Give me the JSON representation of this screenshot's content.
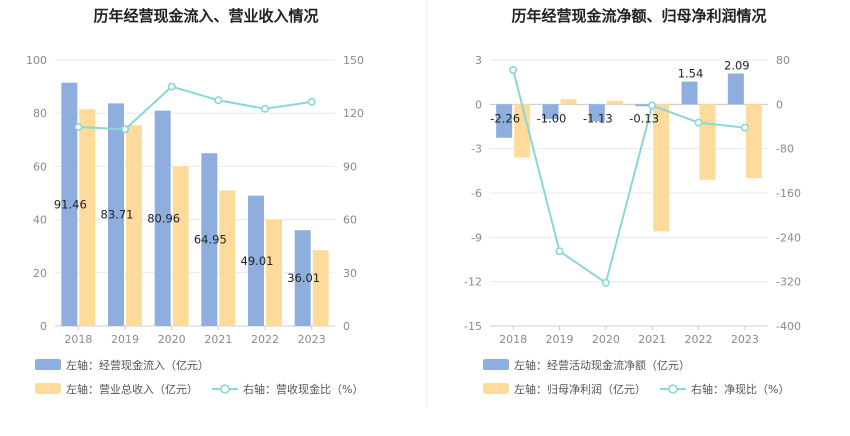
{
  "chart_data": [
    {
      "type": "bar",
      "title": "历年经营现金流入、营业收入情况",
      "categories": [
        "2018",
        "2019",
        "2020",
        "2021",
        "2022",
        "2023"
      ],
      "left_axis": {
        "ylim": [
          0,
          100
        ],
        "ticks": [
          "0",
          "20",
          "40",
          "60",
          "80",
          "100"
        ]
      },
      "right_axis": {
        "ylim": [
          0,
          150
        ],
        "ticks": [
          "0",
          "30",
          "60",
          "90",
          "120",
          "150"
        ]
      },
      "grid": true,
      "legend_position": "bottom-left",
      "series": [
        {
          "name": "左轴：经营现金流入（亿元）",
          "type": "bar",
          "axis": "left",
          "color": "#8eaedd",
          "values": [
            91.46,
            83.71,
            80.96,
            64.95,
            49.01,
            36.01
          ],
          "labels": [
            "91.46",
            "83.71",
            "80.96",
            "64.95",
            "49.01",
            "36.01"
          ]
        },
        {
          "name": "左轴：营业总收入（亿元）",
          "type": "bar",
          "axis": "left",
          "color": "#fedb9b",
          "values": [
            81.5,
            75.5,
            60,
            51,
            40,
            28.5
          ]
        },
        {
          "name": "右轴：营收现金比（%）",
          "type": "line",
          "axis": "right",
          "color": "#8ad6d8",
          "values": [
            112.2,
            110.9,
            135,
            127.3,
            122.5,
            126.4
          ]
        }
      ]
    },
    {
      "type": "bar",
      "title": "历年经营现金流净额、归母净利润情况",
      "categories": [
        "2018",
        "2019",
        "2020",
        "2021",
        "2022",
        "2023"
      ],
      "left_axis": {
        "ylim": [
          -15,
          3
        ],
        "ticks": [
          "-15",
          "-12",
          "-9",
          "-6",
          "-3",
          "0",
          "3"
        ]
      },
      "right_axis": {
        "ylim": [
          -400,
          80
        ],
        "ticks": [
          "-400",
          "-320",
          "-240",
          "-160",
          "-80",
          "0",
          "80"
        ]
      },
      "grid": true,
      "legend_position": "bottom-left",
      "series": [
        {
          "name": "左轴：经营活动现金流净额（亿元）",
          "type": "bar",
          "axis": "left",
          "color": "#8eaedd",
          "values": [
            -2.26,
            -1.0,
            -1.13,
            -0.13,
            1.54,
            2.09
          ],
          "labels": [
            "-2.26",
            "-1.00",
            "-1.13",
            "-0.13",
            "1.54",
            "2.09"
          ]
        },
        {
          "name": "左轴：归母净利润（亿元）",
          "type": "bar",
          "axis": "left",
          "color": "#fedb9b",
          "values": [
            -3.6,
            0.35,
            0.25,
            -8.6,
            -5.1,
            -5.0
          ]
        },
        {
          "name": "右轴：净现比（%）",
          "type": "line",
          "axis": "right",
          "color": "#8ad6d8",
          "values": [
            62,
            -265,
            -322,
            -2,
            -33,
            -42
          ]
        }
      ]
    }
  ]
}
